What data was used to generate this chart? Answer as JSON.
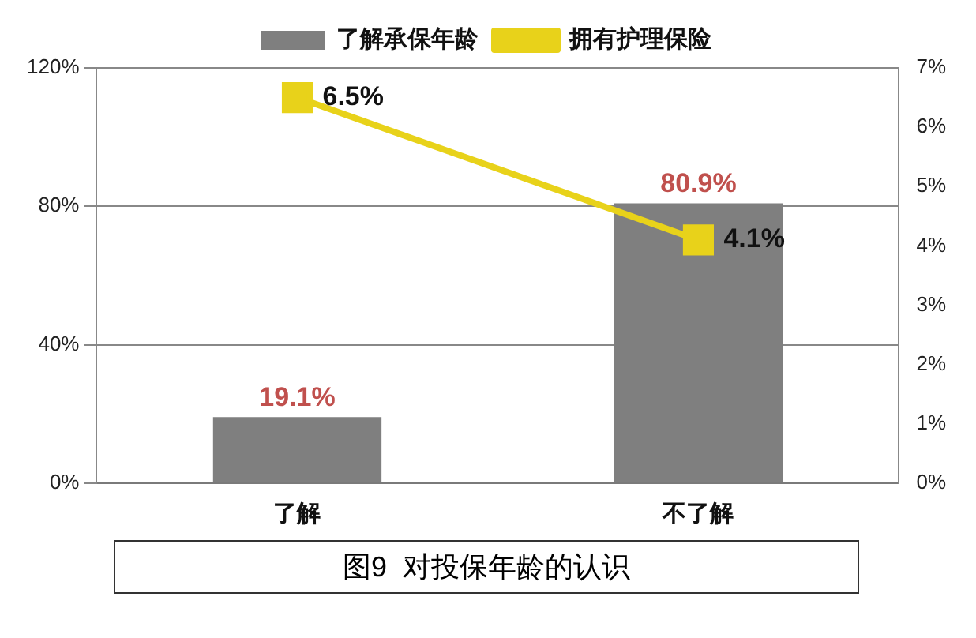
{
  "chart_data": {
    "type": "bar",
    "categories": [
      "了解",
      "不了解"
    ],
    "series": [
      {
        "name": "了解承保年龄",
        "color": "#7f7f7f",
        "values": [
          19.1,
          80.9
        ],
        "value_labels": [
          "19.1%",
          "80.9%"
        ]
      },
      {
        "name": "拥有护理保险",
        "type": "line",
        "axis": "y2",
        "color": "#e8d21a",
        "values": [
          6.5,
          4.1
        ],
        "value_labels": [
          "6.5%",
          "4.1%"
        ],
        "marker": "square"
      }
    ],
    "ylim": [
      0,
      120
    ],
    "yticks": [
      {
        "value": 0,
        "label": "0%"
      },
      {
        "value": 40,
        "label": "40%"
      },
      {
        "value": 80,
        "label": "80%"
      },
      {
        "value": 120,
        "label": "120%"
      }
    ],
    "y2lim": [
      0,
      7
    ],
    "y2ticks": [
      {
        "value": 0,
        "label": "0%"
      },
      {
        "value": 1,
        "label": "1%"
      },
      {
        "value": 2,
        "label": "2%"
      },
      {
        "value": 3,
        "label": "3%"
      },
      {
        "value": 4,
        "label": "4%"
      },
      {
        "value": 5,
        "label": "5%"
      },
      {
        "value": 6,
        "label": "6%"
      },
      {
        "value": 7,
        "label": "7%"
      }
    ],
    "grid": "y",
    "legend": "top",
    "annotations": [
      "图9  对投保年龄的认识"
    ]
  }
}
